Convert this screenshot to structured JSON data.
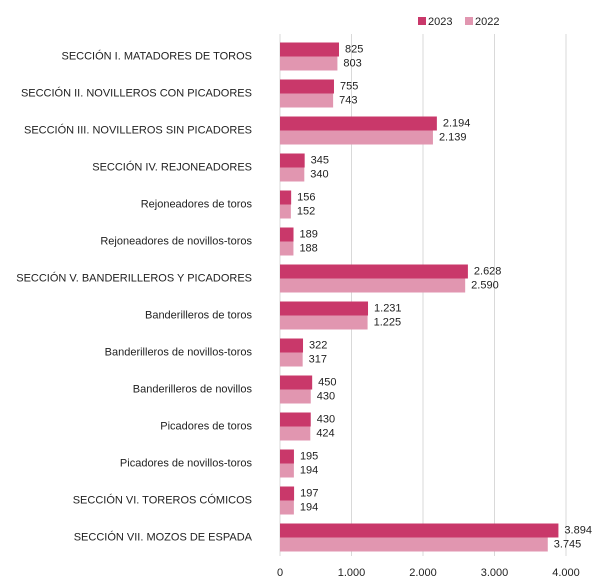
{
  "chart_data": {
    "type": "hbar",
    "categories": [
      "SECCIÓN I. MATADORES DE TOROS",
      "SECCIÓN II. NOVILLEROS CON PICADORES",
      "SECCIÓN III. NOVILLEROS SIN PICADORES",
      "SECCIÓN IV. REJONEADORES",
      "Rejoneadores de toros",
      "Rejoneadores de novillos-toros",
      "SECCIÓN V. BANDERILLEROS Y PICADORES",
      "Banderilleros de toros",
      "Banderilleros de novillos-toros",
      "Banderilleros de novillos",
      "Picadores de toros",
      "Picadores de novillos-toros",
      "SECCIÓN VI. TOREROS CÓMICOS",
      "SECCIÓN VII. MOZOS DE ESPADA"
    ],
    "series": [
      {
        "name": "2023",
        "color": "#c9386a",
        "values": [
          825,
          755,
          2194,
          345,
          156,
          189,
          2628,
          1231,
          322,
          450,
          430,
          195,
          197,
          3894
        ],
        "value_labels": [
          "825",
          "755",
          "2.194",
          "345",
          "156",
          "189",
          "2.628",
          "1.231",
          "322",
          "450",
          "430",
          "195",
          "197",
          "3.894"
        ]
      },
      {
        "name": "2022",
        "color": "#e196b0",
        "values": [
          803,
          743,
          2139,
          340,
          152,
          188,
          2590,
          1225,
          317,
          430,
          424,
          194,
          194,
          3745
        ],
        "value_labels": [
          "803",
          "743",
          "2.139",
          "340",
          "152",
          "188",
          "2.590",
          "1.225",
          "317",
          "430",
          "424",
          "194",
          "194",
          "3.745"
        ]
      }
    ],
    "xlim": [
      0,
      4000
    ],
    "xticks": [
      0,
      {
        "value": 1000,
        "label": "1.000"
      },
      {
        "value": 2000,
        "label": "2.000"
      },
      {
        "value": 3000,
        "label": "3.000"
      },
      {
        "value": 4000,
        "label": "4.000"
      }
    ],
    "grid": true,
    "legend": "top-right"
  }
}
